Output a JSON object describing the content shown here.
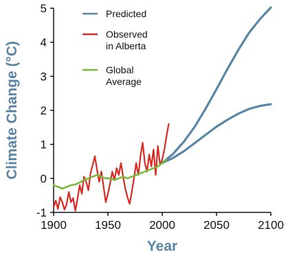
{
  "chart_data": {
    "type": "line",
    "xlabel": "Year",
    "ylabel": "Climate Change (°C)",
    "xlim": [
      1900,
      2100
    ],
    "ylim": [
      -1,
      5
    ],
    "x_ticks": [
      "1900",
      "1950",
      "2000",
      "2050",
      "2100"
    ],
    "y_ticks": [
      "5",
      "4",
      "3",
      "2",
      "1",
      "0",
      "-1"
    ],
    "axis_color": "#111111",
    "title_color": "#5a86a5",
    "legend": [
      {
        "label": "Predicted",
        "color": "#5a86a5"
      },
      {
        "label": "Observed\nin Alberta",
        "color": "#d92b23"
      },
      {
        "label": "Global\nAverage",
        "color": "#79b93a"
      }
    ],
    "series": [
      {
        "name": "Predicted",
        "color": "#5a86a5",
        "lines": [
          [
            [
              2000,
              0.45
            ],
            [
              2010,
              0.72
            ],
            [
              2020,
              1.08
            ],
            [
              2030,
              1.52
            ],
            [
              2040,
              2.05
            ],
            [
              2050,
              2.62
            ],
            [
              2060,
              3.21
            ],
            [
              2070,
              3.77
            ],
            [
              2080,
              4.28
            ],
            [
              2090,
              4.68
            ],
            [
              2100,
              5.02
            ]
          ],
          [
            [
              2000,
              0.45
            ],
            [
              2010,
              0.6
            ],
            [
              2020,
              0.8
            ],
            [
              2030,
              1.04
            ],
            [
              2040,
              1.28
            ],
            [
              2050,
              1.52
            ],
            [
              2060,
              1.72
            ],
            [
              2070,
              1.9
            ],
            [
              2080,
              2.04
            ],
            [
              2090,
              2.13
            ],
            [
              2100,
              2.18
            ]
          ]
        ]
      },
      {
        "name": "Observed in Alberta",
        "color": "#d92b23",
        "x": [
          1900,
          1902,
          1904,
          1906,
          1908,
          1910,
          1912,
          1914,
          1916,
          1918,
          1920,
          1922,
          1924,
          1926,
          1928,
          1930,
          1932,
          1934,
          1936,
          1938,
          1940,
          1942,
          1944,
          1946,
          1948,
          1950,
          1952,
          1954,
          1956,
          1958,
          1960,
          1962,
          1964,
          1966,
          1968,
          1970,
          1972,
          1974,
          1976,
          1978,
          1980,
          1982,
          1984,
          1986,
          1988,
          1990,
          1992,
          1994,
          1996,
          1998,
          2000,
          2002,
          2004,
          2006
        ],
        "y": [
          -0.85,
          -0.65,
          -0.9,
          -0.55,
          -0.7,
          -0.92,
          -0.75,
          -0.4,
          -0.7,
          -0.58,
          -0.95,
          -0.6,
          -0.2,
          -0.45,
          0.05,
          -0.1,
          -0.35,
          0.15,
          0.4,
          0.65,
          0.25,
          -0.1,
          0.2,
          -0.25,
          -0.7,
          -0.45,
          -0.15,
          0.2,
          -0.05,
          0.3,
          0.1,
          0.45,
          0.05,
          -0.3,
          -0.55,
          -0.75,
          -0.4,
          0.0,
          0.45,
          0.1,
          0.65,
          1.05,
          0.45,
          0.2,
          0.7,
          0.35,
          0.85,
          0.1,
          0.95,
          0.4,
          0.55,
          0.85,
          1.25,
          1.6
        ]
      },
      {
        "name": "Global Average",
        "color": "#79b93a",
        "x": [
          1900,
          1904,
          1908,
          1912,
          1916,
          1920,
          1924,
          1928,
          1932,
          1936,
          1940,
          1944,
          1948,
          1952,
          1956,
          1960,
          1964,
          1968,
          1972,
          1976,
          1980,
          1984,
          1988,
          1992,
          1996,
          2000,
          2004
        ],
        "y": [
          -0.2,
          -0.25,
          -0.3,
          -0.25,
          -0.2,
          -0.18,
          -0.12,
          -0.05,
          0.0,
          0.05,
          0.1,
          0.05,
          0.0,
          0.0,
          -0.05,
          0.0,
          0.05,
          0.0,
          0.05,
          0.1,
          0.15,
          0.2,
          0.25,
          0.3,
          0.35,
          0.45,
          0.55
        ]
      }
    ]
  }
}
